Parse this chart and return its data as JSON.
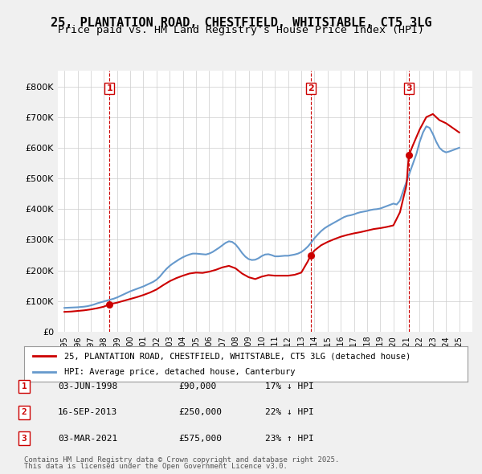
{
  "title": "25, PLANTATION ROAD, CHESTFIELD, WHITSTABLE, CT5 3LG",
  "subtitle": "Price paid vs. HM Land Registry's House Price Index (HPI)",
  "title_fontsize": 11,
  "subtitle_fontsize": 9.5,
  "ylim": [
    0,
    850000
  ],
  "yticks": [
    0,
    100000,
    200000,
    300000,
    400000,
    500000,
    600000,
    700000,
    800000
  ],
  "ytick_labels": [
    "£0",
    "£100K",
    "£200K",
    "£300K",
    "£400K",
    "£500K",
    "£600K",
    "£700K",
    "£800K"
  ],
  "xlim_start": 1994.5,
  "xlim_end": 2026.0,
  "sale_dates": [
    1998.42,
    2013.71,
    2021.17
  ],
  "sale_prices": [
    90000,
    250000,
    575000
  ],
  "sale_labels": [
    "1",
    "2",
    "3"
  ],
  "sale_date_strs": [
    "03-JUN-1998",
    "16-SEP-2013",
    "03-MAR-2021"
  ],
  "sale_price_strs": [
    "£90,000",
    "£250,000",
    "£575,000"
  ],
  "sale_pct_strs": [
    "17% ↓ HPI",
    "22% ↓ HPI",
    "23% ↑ HPI"
  ],
  "red_line_color": "#cc0000",
  "blue_line_color": "#6699cc",
  "vline_color": "#cc0000",
  "legend_label_red": "25, PLANTATION ROAD, CHESTFIELD, WHITSTABLE, CT5 3LG (detached house)",
  "legend_label_blue": "HPI: Average price, detached house, Canterbury",
  "footnote1": "Contains HM Land Registry data © Crown copyright and database right 2025.",
  "footnote2": "This data is licensed under the Open Government Licence v3.0.",
  "bg_color": "#f0f0f0",
  "plot_bg_color": "#ffffff",
  "grid_color": "#cccccc",
  "hpi_data_x": [
    1995.0,
    1995.25,
    1995.5,
    1995.75,
    1996.0,
    1996.25,
    1996.5,
    1996.75,
    1997.0,
    1997.25,
    1997.5,
    1997.75,
    1998.0,
    1998.25,
    1998.5,
    1998.75,
    1999.0,
    1999.25,
    1999.5,
    1999.75,
    2000.0,
    2000.25,
    2000.5,
    2000.75,
    2001.0,
    2001.25,
    2001.5,
    2001.75,
    2002.0,
    2002.25,
    2002.5,
    2002.75,
    2003.0,
    2003.25,
    2003.5,
    2003.75,
    2004.0,
    2004.25,
    2004.5,
    2004.75,
    2005.0,
    2005.25,
    2005.5,
    2005.75,
    2006.0,
    2006.25,
    2006.5,
    2006.75,
    2007.0,
    2007.25,
    2007.5,
    2007.75,
    2008.0,
    2008.25,
    2008.5,
    2008.75,
    2009.0,
    2009.25,
    2009.5,
    2009.75,
    2010.0,
    2010.25,
    2010.5,
    2010.75,
    2011.0,
    2011.25,
    2011.5,
    2011.75,
    2012.0,
    2012.25,
    2012.5,
    2012.75,
    2013.0,
    2013.25,
    2013.5,
    2013.75,
    2014.0,
    2014.25,
    2014.5,
    2014.75,
    2015.0,
    2015.25,
    2015.5,
    2015.75,
    2016.0,
    2016.25,
    2016.5,
    2016.75,
    2017.0,
    2017.25,
    2017.5,
    2017.75,
    2018.0,
    2018.25,
    2018.5,
    2018.75,
    2019.0,
    2019.25,
    2019.5,
    2019.75,
    2020.0,
    2020.25,
    2020.5,
    2020.75,
    2021.0,
    2021.25,
    2021.5,
    2021.75,
    2022.0,
    2022.25,
    2022.5,
    2022.75,
    2023.0,
    2023.25,
    2023.5,
    2023.75,
    2024.0,
    2024.25,
    2024.5,
    2024.75,
    2025.0
  ],
  "hpi_data_y": [
    78000,
    78500,
    79000,
    79500,
    80000,
    81000,
    82000,
    83500,
    86000,
    89000,
    93000,
    96000,
    99000,
    102000,
    105000,
    108000,
    112000,
    117000,
    122000,
    127000,
    132000,
    136000,
    140000,
    144000,
    148000,
    153000,
    158000,
    163000,
    170000,
    180000,
    193000,
    205000,
    215000,
    223000,
    230000,
    237000,
    243000,
    248000,
    252000,
    255000,
    255000,
    254000,
    253000,
    252000,
    255000,
    260000,
    267000,
    274000,
    282000,
    290000,
    295000,
    293000,
    285000,
    272000,
    257000,
    245000,
    237000,
    234000,
    235000,
    240000,
    247000,
    252000,
    253000,
    250000,
    246000,
    246000,
    247000,
    248000,
    248000,
    250000,
    252000,
    255000,
    260000,
    268000,
    278000,
    291000,
    305000,
    317000,
    328000,
    337000,
    344000,
    350000,
    356000,
    362000,
    368000,
    374000,
    378000,
    380000,
    383000,
    387000,
    390000,
    392000,
    394000,
    397000,
    399000,
    400000,
    402000,
    406000,
    410000,
    414000,
    418000,
    415000,
    428000,
    460000,
    490000,
    520000,
    550000,
    580000,
    620000,
    650000,
    670000,
    665000,
    645000,
    620000,
    600000,
    590000,
    585000,
    588000,
    592000,
    596000,
    600000
  ],
  "red_data_x": [
    1995.0,
    1995.5,
    1996.0,
    1996.5,
    1997.0,
    1997.5,
    1998.0,
    1998.42,
    1999.0,
    1999.5,
    2000.0,
    2000.5,
    2001.0,
    2001.5,
    2002.0,
    2002.5,
    2003.0,
    2003.5,
    2004.0,
    2004.5,
    2005.0,
    2005.5,
    2006.0,
    2006.5,
    2007.0,
    2007.5,
    2008.0,
    2008.5,
    2009.0,
    2009.5,
    2010.0,
    2010.5,
    2011.0,
    2011.5,
    2012.0,
    2012.5,
    2013.0,
    2013.5,
    2013.71,
    2014.0,
    2014.5,
    2015.0,
    2015.5,
    2016.0,
    2016.5,
    2017.0,
    2017.5,
    2018.0,
    2018.5,
    2019.0,
    2019.5,
    2020.0,
    2020.5,
    2021.0,
    2021.17,
    2021.5,
    2022.0,
    2022.5,
    2023.0,
    2023.5,
    2024.0,
    2024.5,
    2025.0
  ],
  "red_data_y": [
    65000,
    66000,
    68000,
    70000,
    73000,
    77000,
    82000,
    90000,
    95000,
    101000,
    107000,
    113000,
    120000,
    128000,
    138000,
    152000,
    165000,
    175000,
    183000,
    190000,
    193000,
    192000,
    196000,
    202000,
    210000,
    215000,
    207000,
    190000,
    178000,
    172000,
    180000,
    185000,
    183000,
    183000,
    183000,
    186000,
    193000,
    230000,
    250000,
    265000,
    282000,
    293000,
    302000,
    310000,
    316000,
    321000,
    325000,
    330000,
    335000,
    338000,
    342000,
    347000,
    390000,
    480000,
    575000,
    610000,
    660000,
    700000,
    710000,
    690000,
    680000,
    665000,
    650000
  ]
}
